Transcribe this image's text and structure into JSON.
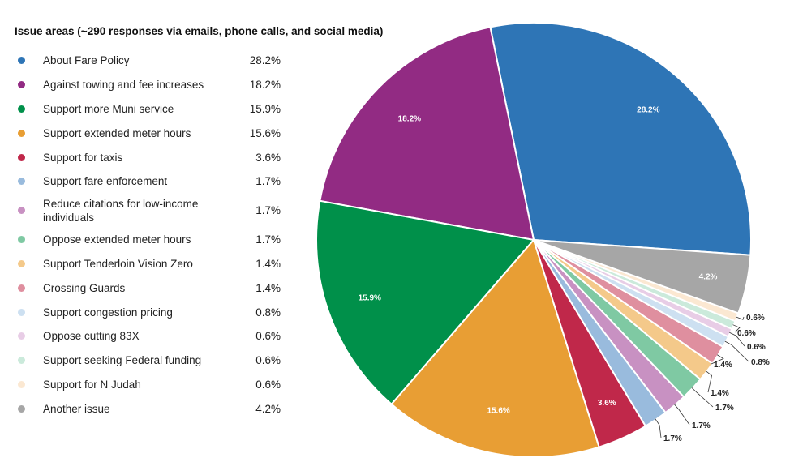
{
  "chart_data": {
    "type": "pie",
    "title": "Issue areas (~290 responses via emails, phone calls, and social media)",
    "slices": [
      {
        "label": "About Fare Policy",
        "value": 28.2,
        "display": "28.2%",
        "color": "#2e75b6"
      },
      {
        "label": "Against towing and fee increases",
        "value": 18.2,
        "display": "18.2%",
        "color": "#922b83"
      },
      {
        "label": "Support more Muni service",
        "value": 15.9,
        "display": "15.9%",
        "color": "#00904a"
      },
      {
        "label": "Support extended meter hours",
        "value": 15.6,
        "display": "15.6%",
        "color": "#e89e34"
      },
      {
        "label": "Support for taxis",
        "value": 3.6,
        "display": "3.6%",
        "color": "#c0284a"
      },
      {
        "label": "Support fare enforcement",
        "value": 1.7,
        "display": "1.7%",
        "color": "#99bbdd"
      },
      {
        "label": "Reduce citations for low-income individuals",
        "value": 1.7,
        "display": "1.7%",
        "color": "#c891c2"
      },
      {
        "label": "Oppose extended meter hours",
        "value": 1.7,
        "display": "1.7%",
        "color": "#7fc9a3"
      },
      {
        "label": "Support Tenderloin Vision Zero",
        "value": 1.4,
        "display": "1.4%",
        "color": "#f4c98a"
      },
      {
        "label": "Crossing Guards",
        "value": 1.4,
        "display": "1.4%",
        "color": "#df8f9f"
      },
      {
        "label": "Support congestion pricing",
        "value": 0.8,
        "display": "0.8%",
        "color": "#cde0f1"
      },
      {
        "label": "Oppose cutting 83X",
        "value": 0.6,
        "display": "0.6%",
        "color": "#e8cde6"
      },
      {
        "label": "Support seeking Federal funding",
        "value": 0.6,
        "display": "0.6%",
        "color": "#cbeadb"
      },
      {
        "label": "Support for N Judah",
        "value": 0.6,
        "display": "0.6%",
        "color": "#fbe8d2"
      },
      {
        "label": "Another issue",
        "value": 4.2,
        "display": "4.2%",
        "color": "#a6a6a6"
      }
    ],
    "start_angle_deg": 356,
    "direction": "counterclockwise",
    "legend_position": "left"
  }
}
